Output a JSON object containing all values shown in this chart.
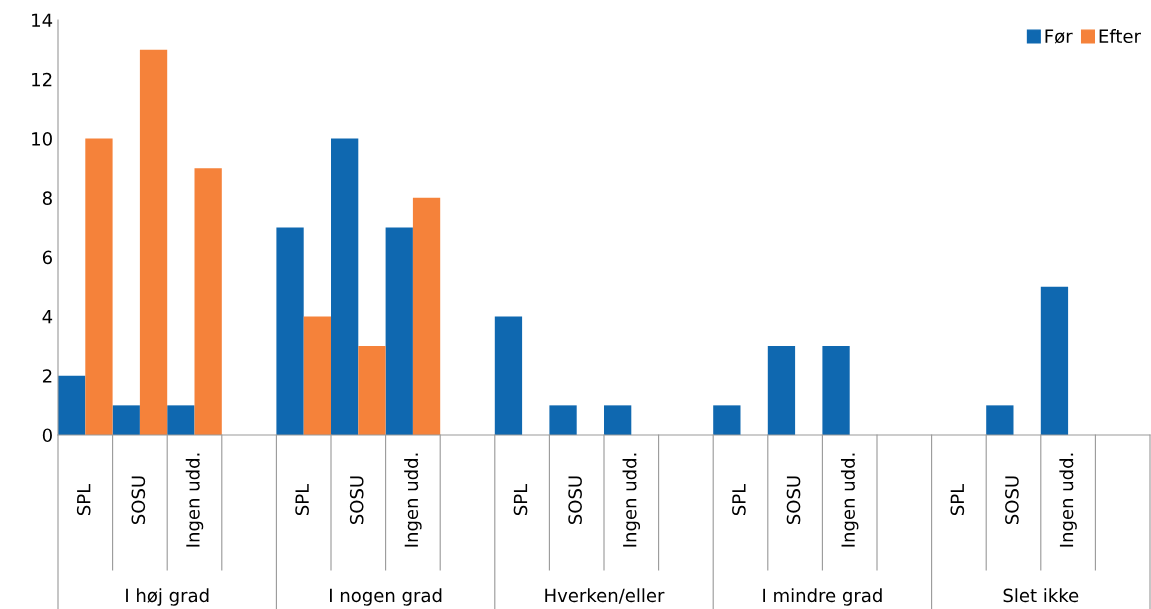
{
  "chart_data": {
    "type": "bar",
    "categories": [
      "SPL",
      "SOSU",
      "Ingen udd.",
      null,
      "SPL",
      "SOSU",
      "Ingen udd.",
      null,
      "SPL",
      "SOSU",
      "Ingen udd.",
      null,
      "SPL",
      "SOSU",
      "Ingen udd.",
      null,
      "SPL",
      "SOSU",
      "Ingen udd.",
      null
    ],
    "series": [
      {
        "name": "Før",
        "color": "#0f68b0",
        "values": [
          2,
          1,
          1,
          null,
          7,
          10,
          7,
          null,
          4,
          1,
          1,
          null,
          1,
          3,
          3,
          null,
          0,
          1,
          5,
          null
        ]
      },
      {
        "name": "Efter",
        "color": "#f5823a",
        "values": [
          10,
          13,
          9,
          null,
          4,
          3,
          8,
          null,
          0,
          0,
          0,
          null,
          0,
          0,
          0,
          null,
          0,
          0,
          0,
          null
        ]
      }
    ],
    "annotations": [
      "I høj grad",
      "I nogen grad",
      "Hverken/eller",
      "I mindre grad",
      "Slet ikke"
    ],
    "ylim": [
      0,
      14
    ],
    "yticks": [
      0,
      2,
      4,
      6,
      8,
      10,
      12,
      14
    ],
    "grid": false,
    "legend": "top right"
  }
}
